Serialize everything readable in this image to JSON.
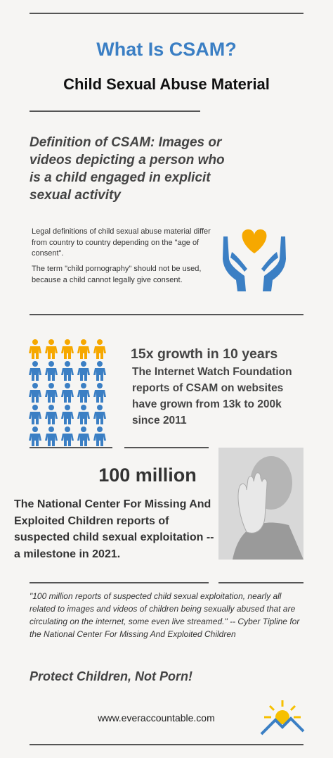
{
  "header": {
    "title": "What Is CSAM?",
    "subtitle": "Child Sexual Abuse Material"
  },
  "definition": {
    "heading": "Definition of CSAM: Images or videos depicting a person who is a child engaged in explicit sexual activity",
    "body": [
      "Legal definitions of child sexual  abuse material differ from country to country depending on the \"age of consent\".",
      "The term \"child pornography\" should not be used, because a child cannot legally give consent."
    ]
  },
  "growth": {
    "heading": "15x growth in 10 years",
    "text": "The Internet Watch Foundation reports of CSAM on websites have grown from 13k to 200k since 2011"
  },
  "stat": {
    "heading": "100 million",
    "text": "The National Center For Missing And Exploited Children reports of suspected child sexual exploitation -- a milestone in 2021."
  },
  "quote": {
    "text": "\"100 million reports of suspected child sexual exploitation, nearly all related to images and videos of children being sexually abused that are circulating on the internet, some even live streamed.\"  -- Cyber Tipline for the National Center For Missing And Exploited Children"
  },
  "footer": {
    "slogan": "Protect Children, Not Porn!",
    "url": "www.everaccountable.com"
  }
}
